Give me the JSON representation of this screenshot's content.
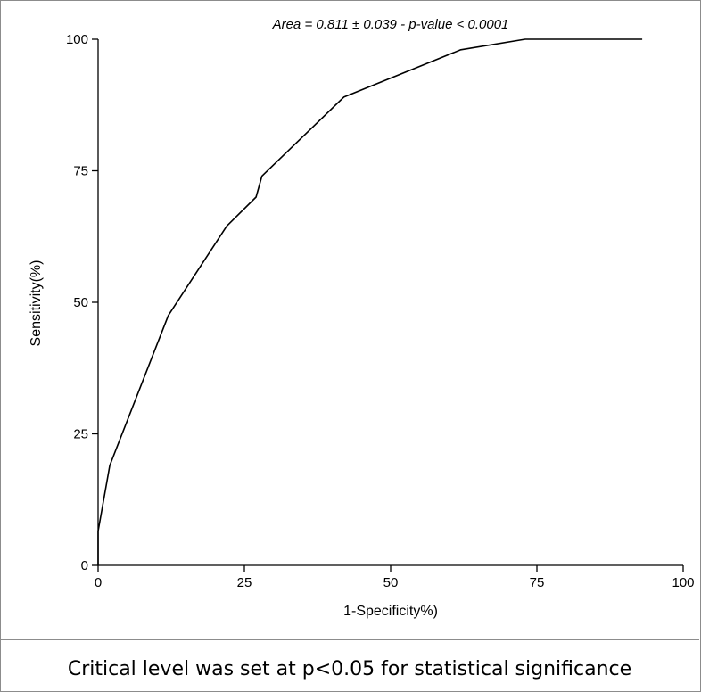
{
  "chart_data": {
    "type": "line",
    "title": "Area = 0.811 ± 0.039 - p-value < 0.0001",
    "xlabel": "1-Specificity%)",
    "ylabel": "Sensitivity(%)",
    "xlim": [
      0,
      100
    ],
    "ylim": [
      0,
      100
    ],
    "xticks": [
      "0",
      "25",
      "50",
      "75",
      "100"
    ],
    "yticks": [
      "0",
      "25",
      "50",
      "75",
      "100"
    ],
    "grid": false,
    "series": [
      {
        "color": "#000000",
        "x": [
          0,
          0,
          2,
          12,
          22,
          27,
          28,
          42,
          62,
          73,
          93
        ],
        "y": [
          0,
          6.5,
          19,
          47.5,
          64.5,
          70,
          74,
          89,
          98,
          100,
          100
        ]
      }
    ]
  },
  "footer": {
    "note": "Critical level was set at p<0.05 for statistical significance"
  }
}
